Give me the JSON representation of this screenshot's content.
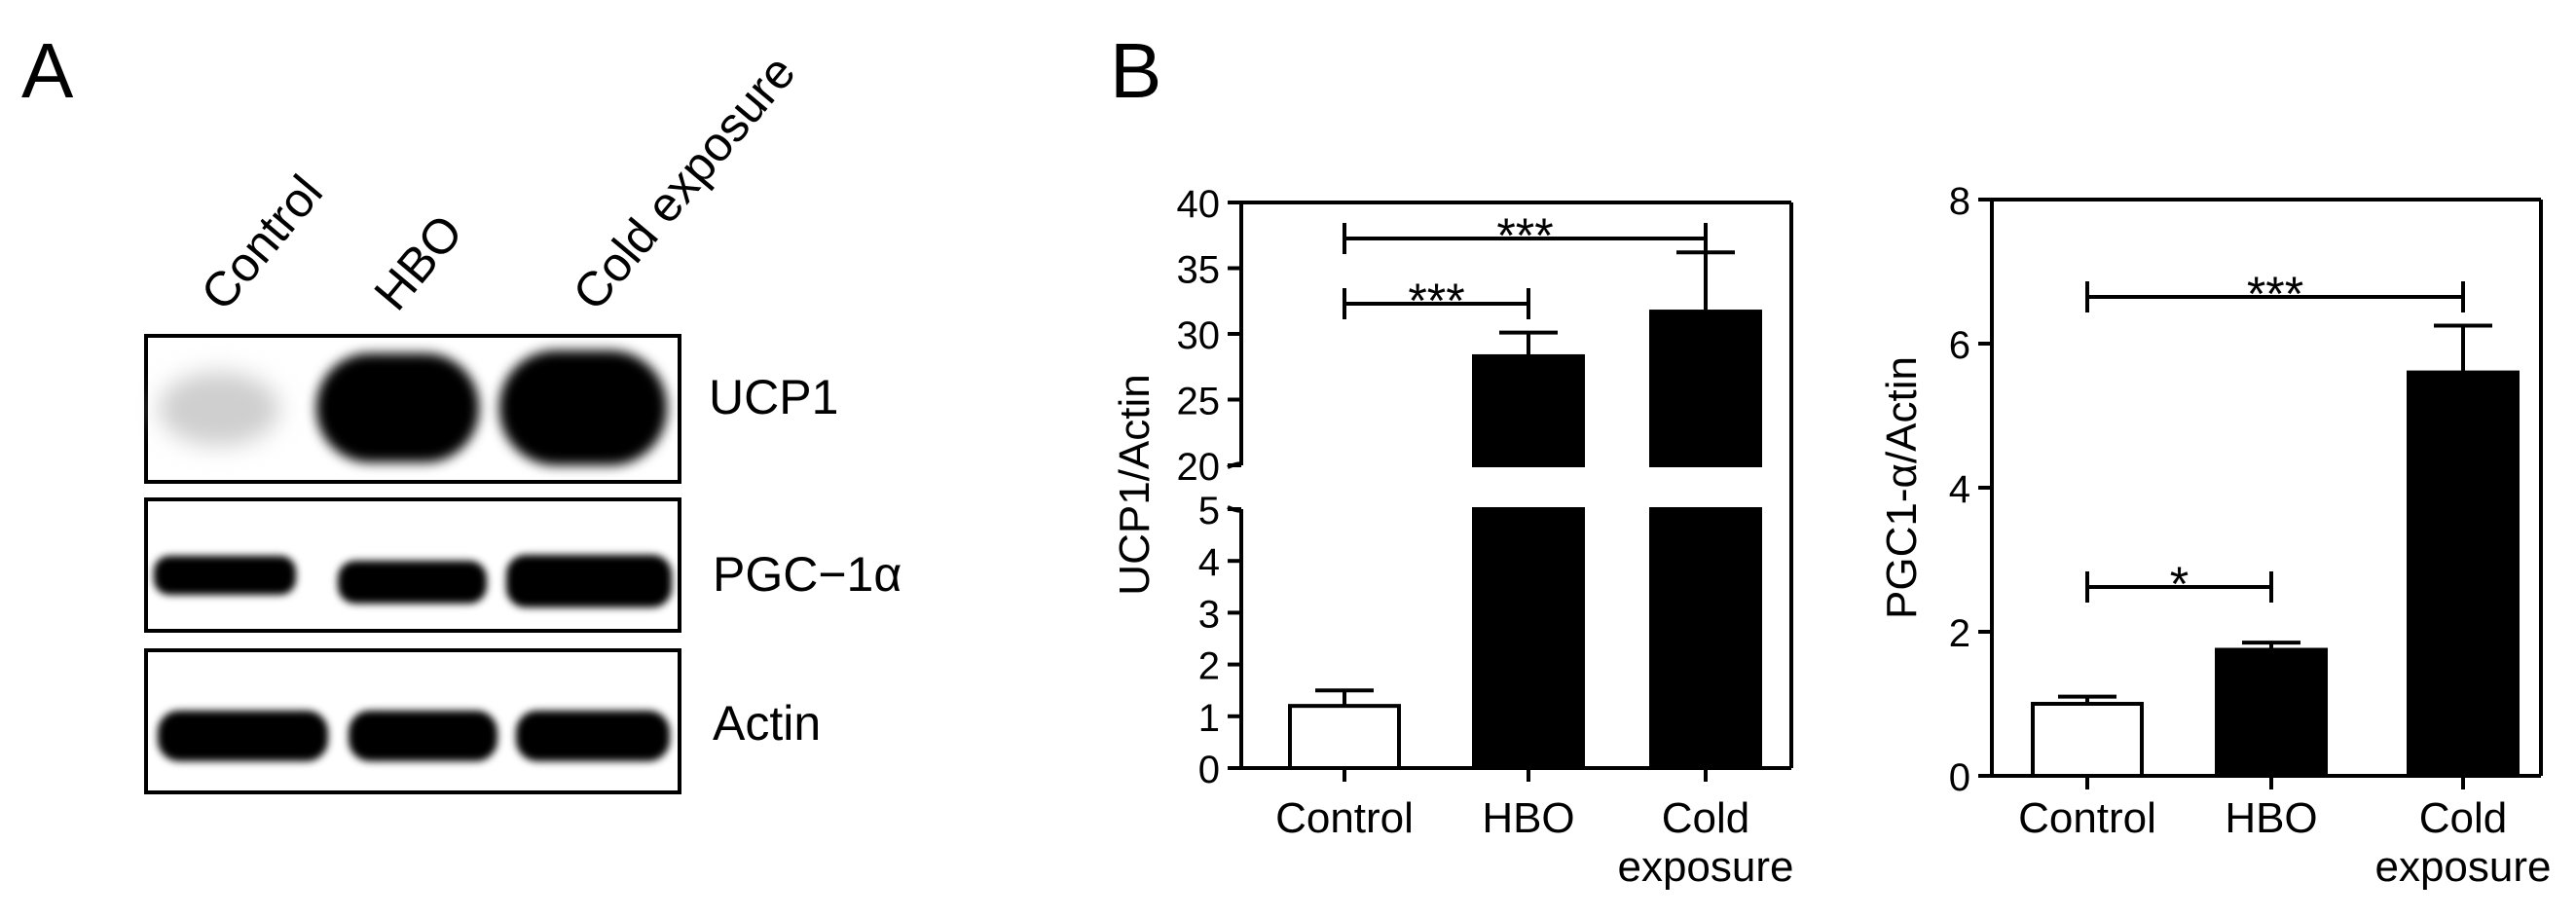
{
  "panels": {
    "a_label": "A",
    "b_label": "B"
  },
  "blot": {
    "lanes": [
      "Control",
      "HBO",
      "Cold exposure"
    ],
    "bands": [
      "UCP1",
      "PGC−1α",
      "Actin"
    ]
  },
  "chart_data": [
    {
      "type": "bar",
      "categories": [
        "Control",
        "HBO",
        "Cold exposure"
      ],
      "category_lines": [
        [
          "Control"
        ],
        [
          "HBO"
        ],
        [
          "Cold",
          "exposure"
        ]
      ],
      "values": [
        1.2,
        28.3,
        31.7
      ],
      "errors": [
        0.3,
        1.8,
        4.5
      ],
      "fills": [
        "#ffffff",
        "#000000",
        "#000000"
      ],
      "ylabel": "UCP1/Actin",
      "ylim": [
        0,
        40
      ],
      "axis_break": [
        5,
        20
      ],
      "lower_ticks": [
        0,
        1,
        2,
        3,
        4,
        5
      ],
      "upper_ticks": [
        20,
        25,
        30,
        35,
        40
      ],
      "grid": false,
      "significance": [
        {
          "from": 0,
          "to": 1,
          "label": "***"
        },
        {
          "from": 0,
          "to": 2,
          "label": "***"
        }
      ]
    },
    {
      "type": "bar",
      "categories": [
        "Control",
        "HBO",
        "Cold exposure"
      ],
      "category_lines": [
        [
          "Control"
        ],
        [
          "HBO"
        ],
        [
          "Cold",
          "exposure"
        ]
      ],
      "values": [
        1.0,
        1.75,
        5.6
      ],
      "errors": [
        0.1,
        0.1,
        0.65
      ],
      "fills": [
        "#ffffff",
        "#000000",
        "#000000"
      ],
      "ylabel": "PGC1-α/Actin",
      "ylim": [
        0,
        8
      ],
      "ticks": [
        0,
        2,
        4,
        6,
        8
      ],
      "grid": false,
      "significance": [
        {
          "from": 0,
          "to": 1,
          "label": "*"
        },
        {
          "from": 0,
          "to": 2,
          "label": "***"
        }
      ]
    }
  ]
}
